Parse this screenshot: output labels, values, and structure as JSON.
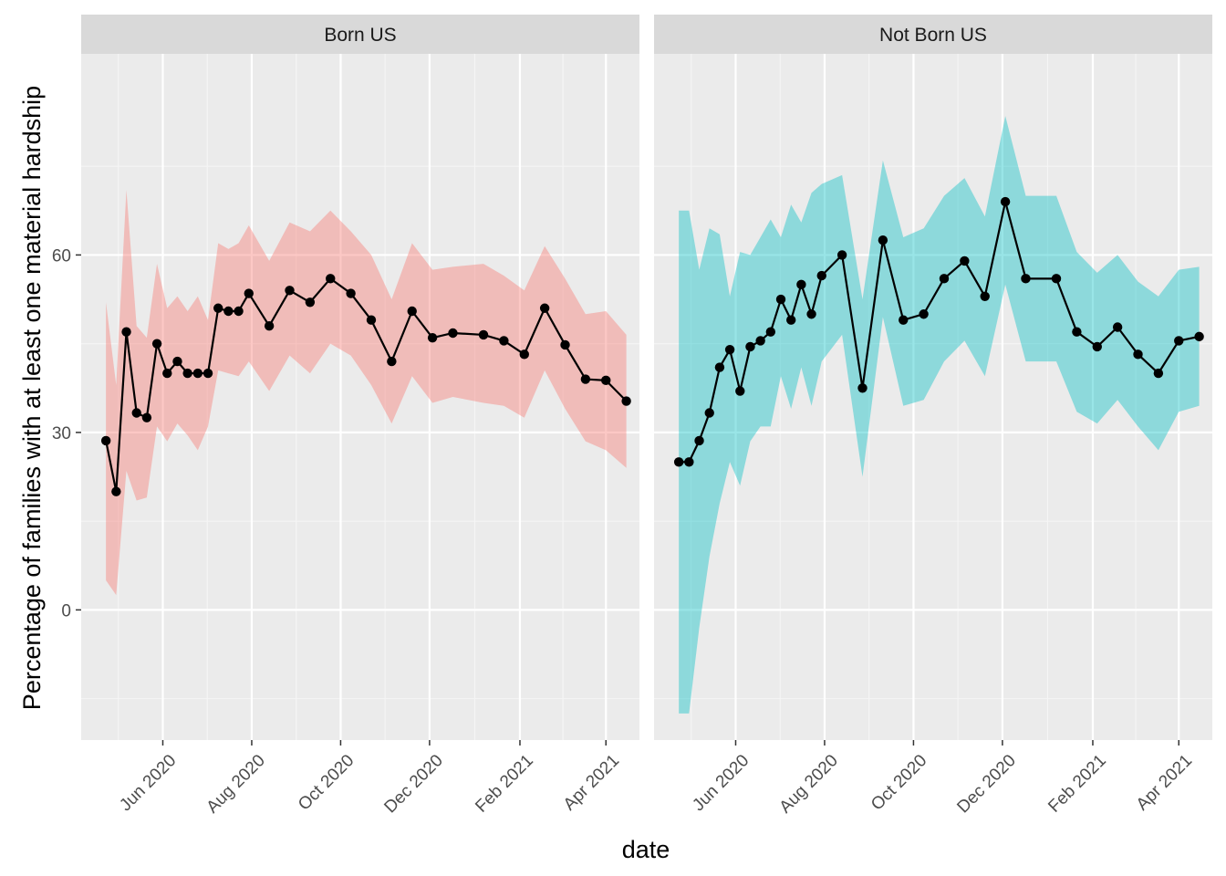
{
  "chart_data": {
    "type": "line",
    "xlabel": "date",
    "ylabel": "Percentage of families with at least one material hardship",
    "ylim": [
      -22,
      94
    ],
    "y_ticks": [
      0,
      30,
      60
    ],
    "y_tick_labels": [
      "0",
      "30",
      "60"
    ],
    "x_range": [
      "2020-04-06",
      "2021-04-24"
    ],
    "x_ticks": [
      "2020-06-01",
      "2020-08-01",
      "2020-10-01",
      "2020-12-01",
      "2021-02-01",
      "2021-04-01"
    ],
    "x_tick_labels": [
      "Jun 2020",
      "Aug 2020",
      "Oct 2020",
      "Dec 2020",
      "Feb 2021",
      "Apr 2021"
    ],
    "grid": true,
    "legend": "none",
    "panels": [
      {
        "strip": "Born US",
        "ribbon_color": "#F8766D",
        "points": [
          {
            "x": "2020-04-23",
            "y": 28.6,
            "lo": 5.0,
            "hi": 52.0
          },
          {
            "x": "2020-04-30",
            "y": 20.0,
            "lo": 2.5,
            "hi": 38.0
          },
          {
            "x": "2020-05-07",
            "y": 47.0,
            "lo": 23.5,
            "hi": 71.0
          },
          {
            "x": "2020-05-14",
            "y": 33.3,
            "lo": 18.5,
            "hi": 48.0
          },
          {
            "x": "2020-05-21",
            "y": 32.5,
            "lo": 19.0,
            "hi": 46.0
          },
          {
            "x": "2020-05-28",
            "y": 45.0,
            "lo": 31.0,
            "hi": 58.5
          },
          {
            "x": "2020-06-04",
            "y": 40.0,
            "lo": 28.5,
            "hi": 51.0
          },
          {
            "x": "2020-06-11",
            "y": 42.0,
            "lo": 31.5,
            "hi": 53.0
          },
          {
            "x": "2020-06-18",
            "y": 40.0,
            "lo": 29.5,
            "hi": 50.5
          },
          {
            "x": "2020-06-25",
            "y": 40.0,
            "lo": 27.0,
            "hi": 53.0
          },
          {
            "x": "2020-07-02",
            "y": 40.0,
            "lo": 31.0,
            "hi": 49.0
          },
          {
            "x": "2020-07-09",
            "y": 51.0,
            "lo": 40.5,
            "hi": 62.0
          },
          {
            "x": "2020-07-16",
            "y": 50.5,
            "lo": 40.0,
            "hi": 61.0
          },
          {
            "x": "2020-07-23",
            "y": 50.5,
            "lo": 39.5,
            "hi": 62.0
          },
          {
            "x": "2020-07-30",
            "y": 53.5,
            "lo": 42.0,
            "hi": 65.0
          },
          {
            "x": "2020-08-13",
            "y": 48.0,
            "lo": 37.0,
            "hi": 59.0
          },
          {
            "x": "2020-08-27",
            "y": 54.0,
            "lo": 43.0,
            "hi": 65.5
          },
          {
            "x": "2020-09-10",
            "y": 52.0,
            "lo": 40.0,
            "hi": 64.0
          },
          {
            "x": "2020-09-24",
            "y": 56.0,
            "lo": 45.0,
            "hi": 67.5
          },
          {
            "x": "2020-10-08",
            "y": 53.5,
            "lo": 43.0,
            "hi": 64.0
          },
          {
            "x": "2020-10-22",
            "y": 49.0,
            "lo": 38.0,
            "hi": 60.0
          },
          {
            "x": "2020-11-05",
            "y": 42.0,
            "lo": 31.5,
            "hi": 52.5
          },
          {
            "x": "2020-11-19",
            "y": 50.5,
            "lo": 39.5,
            "hi": 62.0
          },
          {
            "x": "2020-12-03",
            "y": 46.0,
            "lo": 35.0,
            "hi": 57.5
          },
          {
            "x": "2020-12-17",
            "y": 46.8,
            "lo": 36.0,
            "hi": 58.0
          },
          {
            "x": "2021-01-07",
            "y": 46.5,
            "lo": 35.0,
            "hi": 58.5
          },
          {
            "x": "2021-01-21",
            "y": 45.5,
            "lo": 34.5,
            "hi": 56.5
          },
          {
            "x": "2021-02-04",
            "y": 43.2,
            "lo": 32.5,
            "hi": 54.0
          },
          {
            "x": "2021-02-18",
            "y": 51.0,
            "lo": 40.5,
            "hi": 61.5
          },
          {
            "x": "2021-03-04",
            "y": 44.8,
            "lo": 34.0,
            "hi": 56.0
          },
          {
            "x": "2021-03-18",
            "y": 39.0,
            "lo": 28.5,
            "hi": 50.0
          },
          {
            "x": "2021-04-01",
            "y": 38.8,
            "lo": 27.0,
            "hi": 50.5
          },
          {
            "x": "2021-04-15",
            "y": 35.3,
            "lo": 24.0,
            "hi": 46.5
          }
        ]
      },
      {
        "strip": "Not Born US",
        "ribbon_color": "#00BFC4",
        "points": [
          {
            "x": "2020-04-23",
            "y": 25.0,
            "lo": -17.5,
            "hi": 67.5
          },
          {
            "x": "2020-04-30",
            "y": 25.0,
            "lo": -17.5,
            "hi": 67.5
          },
          {
            "x": "2020-05-07",
            "y": 28.6,
            "lo": -3.0,
            "hi": 57.5
          },
          {
            "x": "2020-05-14",
            "y": 33.3,
            "lo": 9.0,
            "hi": 64.5
          },
          {
            "x": "2020-05-21",
            "y": 41.0,
            "lo": 18.0,
            "hi": 63.5
          },
          {
            "x": "2020-05-28",
            "y": 44.0,
            "lo": 25.0,
            "hi": 53.0
          },
          {
            "x": "2020-06-04",
            "y": 37.0,
            "lo": 21.0,
            "hi": 60.5
          },
          {
            "x": "2020-06-11",
            "y": 44.5,
            "lo": 28.5,
            "hi": 60.0
          },
          {
            "x": "2020-06-18",
            "y": 45.5,
            "lo": 31.0,
            "hi": 63.0
          },
          {
            "x": "2020-06-25",
            "y": 47.0,
            "lo": 31.0,
            "hi": 66.0
          },
          {
            "x": "2020-07-02",
            "y": 52.5,
            "lo": 39.5,
            "hi": 63.0
          },
          {
            "x": "2020-07-09",
            "y": 49.0,
            "lo": 34.0,
            "hi": 68.5
          },
          {
            "x": "2020-07-16",
            "y": 55.0,
            "lo": 41.0,
            "hi": 65.5
          },
          {
            "x": "2020-07-23",
            "y": 50.0,
            "lo": 34.5,
            "hi": 70.5
          },
          {
            "x": "2020-07-30",
            "y": 56.5,
            "lo": 42.0,
            "hi": 72.0
          },
          {
            "x": "2020-08-13",
            "y": 60.0,
            "lo": 46.5,
            "hi": 73.5
          },
          {
            "x": "2020-08-27",
            "y": 37.5,
            "lo": 22.5,
            "hi": 52.5
          },
          {
            "x": "2020-09-10",
            "y": 62.5,
            "lo": 49.5,
            "hi": 76.0
          },
          {
            "x": "2020-09-24",
            "y": 49.0,
            "lo": 34.5,
            "hi": 63.0
          },
          {
            "x": "2020-10-08",
            "y": 50.0,
            "lo": 35.5,
            "hi": 64.5
          },
          {
            "x": "2020-10-22",
            "y": 56.0,
            "lo": 42.0,
            "hi": 70.0
          },
          {
            "x": "2020-11-05",
            "y": 59.0,
            "lo": 45.5,
            "hi": 73.0
          },
          {
            "x": "2020-11-19",
            "y": 53.0,
            "lo": 39.5,
            "hi": 66.5
          },
          {
            "x": "2020-12-03",
            "y": 69.0,
            "lo": 55.0,
            "hi": 83.5
          },
          {
            "x": "2020-12-17",
            "y": 56.0,
            "lo": 42.0,
            "hi": 70.0
          },
          {
            "x": "2021-01-07",
            "y": 56.0,
            "lo": 42.0,
            "hi": 70.0
          },
          {
            "x": "2021-01-21",
            "y": 47.0,
            "lo": 33.5,
            "hi": 60.5
          },
          {
            "x": "2021-02-04",
            "y": 44.5,
            "lo": 31.5,
            "hi": 57.0
          },
          {
            "x": "2021-02-18",
            "y": 47.8,
            "lo": 35.5,
            "hi": 60.0
          },
          {
            "x": "2021-03-04",
            "y": 43.2,
            "lo": 31.0,
            "hi": 55.5
          },
          {
            "x": "2021-03-18",
            "y": 40.0,
            "lo": 27.0,
            "hi": 53.0
          },
          {
            "x": "2021-04-01",
            "y": 45.5,
            "lo": 33.5,
            "hi": 57.5
          },
          {
            "x": "2021-04-15",
            "y": 46.2,
            "lo": 34.5,
            "hi": 58.0
          }
        ]
      }
    ]
  }
}
